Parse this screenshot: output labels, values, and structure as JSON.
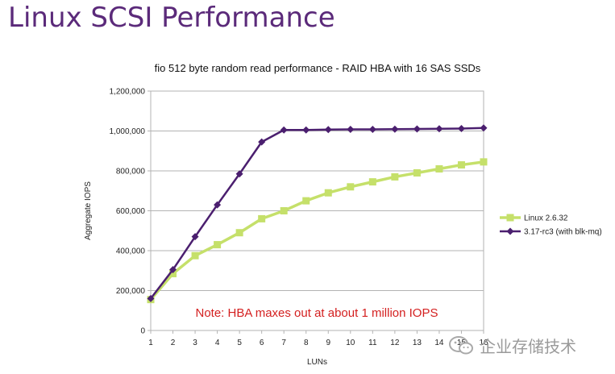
{
  "slide": {
    "title": "Linux SCSI Performance"
  },
  "watermark": {
    "text": "企业存储技术",
    "icon": "chat-bubble-icon"
  },
  "chart_data": {
    "type": "line",
    "title": "fio 512 byte random read performance - RAID HBA with 16 SAS SSDs",
    "xlabel": "LUNs",
    "ylabel": "Aggregate IOPS",
    "x": [
      1,
      2,
      3,
      4,
      5,
      6,
      7,
      8,
      9,
      10,
      11,
      12,
      13,
      14,
      15,
      16
    ],
    "ylim": [
      0,
      1200000
    ],
    "yticks": [
      0,
      200000,
      400000,
      600000,
      800000,
      1000000,
      1200000
    ],
    "ytick_labels": [
      "0",
      "200,000",
      "400,000",
      "600,000",
      "800,000",
      "1,000,000",
      "1,200,000"
    ],
    "grid": true,
    "legend_position": "right",
    "series": [
      {
        "name": "Linux 2.6.32",
        "color": "#c5e06a",
        "marker": "square",
        "values": [
          155000,
          285000,
          375000,
          430000,
          490000,
          560000,
          600000,
          650000,
          690000,
          720000,
          745000,
          770000,
          790000,
          810000,
          830000,
          845000
        ]
      },
      {
        "name": "3.17-rc3 (with blk-mq)",
        "color": "#4b1f6f",
        "marker": "diamond",
        "values": [
          160000,
          305000,
          470000,
          630000,
          785000,
          945000,
          1005000,
          1005000,
          1007000,
          1008000,
          1008000,
          1009000,
          1010000,
          1011000,
          1012000,
          1015000
        ]
      }
    ],
    "annotation": "Note: HBA maxes out at about 1 million IOPS"
  }
}
